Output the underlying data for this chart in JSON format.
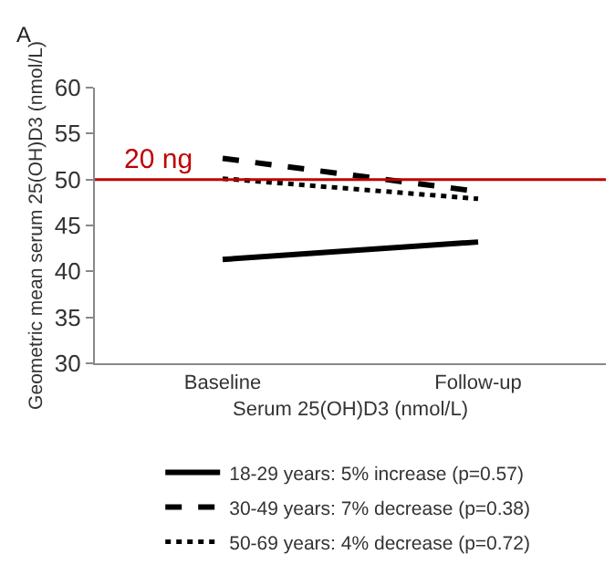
{
  "chart_data": {
    "type": "line",
    "categories": [
      "Baseline",
      "Follow-up"
    ],
    "series": [
      {
        "name": "18-29 years: 5% increase (p=0.57)",
        "color": "#000000",
        "line_style": "solid",
        "values": [
          41.3,
          43.2
        ]
      },
      {
        "name": "30-49 years: 7% decrease (p=0.38)",
        "color": "#000000",
        "line_style": "dashed",
        "values": [
          52.3,
          48.7
        ]
      },
      {
        "name": "50-69 years: 4% decrease (p=0.72)",
        "color": "#000000",
        "line_style": "dotted",
        "values": [
          50.1,
          47.9
        ]
      }
    ],
    "xlabel": "Serum 25(OH)D3 (nmol/L)",
    "ylabel": "Geometric mean serum 25(OH)D3 (nmol/L)",
    "ylim": [
      30,
      60
    ],
    "yticks": [
      30,
      35,
      40,
      45,
      50,
      55,
      60
    ],
    "ref_lines": [
      {
        "axis": "y",
        "value": 50,
        "label": "20 ng",
        "color": "#c00000"
      }
    ],
    "annotations": [
      "A"
    ],
    "legend": "bottom",
    "marker": "none"
  }
}
